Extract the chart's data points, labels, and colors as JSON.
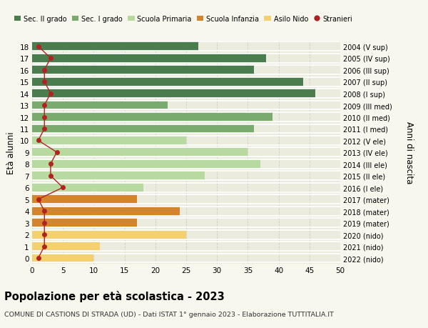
{
  "ages": [
    18,
    17,
    16,
    15,
    14,
    13,
    12,
    11,
    10,
    9,
    8,
    7,
    6,
    5,
    4,
    3,
    2,
    1,
    0
  ],
  "right_labels": [
    "2004 (V sup)",
    "2005 (IV sup)",
    "2006 (III sup)",
    "2007 (II sup)",
    "2008 (I sup)",
    "2009 (III med)",
    "2010 (II med)",
    "2011 (I med)",
    "2012 (V ele)",
    "2013 (IV ele)",
    "2014 (III ele)",
    "2015 (II ele)",
    "2016 (I ele)",
    "2017 (mater)",
    "2018 (mater)",
    "2019 (mater)",
    "2020 (nido)",
    "2021 (nido)",
    "2022 (nido)"
  ],
  "bar_values": [
    27,
    38,
    36,
    44,
    46,
    22,
    39,
    36,
    25,
    35,
    37,
    28,
    18,
    17,
    24,
    17,
    25,
    11,
    10
  ],
  "stranieri_values": [
    1,
    3,
    2,
    2,
    3,
    2,
    2,
    2,
    1,
    4,
    3,
    3,
    5,
    1,
    2,
    2,
    2,
    2,
    1
  ],
  "bar_colors": [
    "#4a7c4e",
    "#4a7c4e",
    "#4a7c4e",
    "#4a7c4e",
    "#4a7c4e",
    "#7aab6e",
    "#7aab6e",
    "#7aab6e",
    "#b8d9a0",
    "#b8d9a0",
    "#b8d9a0",
    "#b8d9a0",
    "#b8d9a0",
    "#d4842a",
    "#d4842a",
    "#d4842a",
    "#f5d070",
    "#f5d070",
    "#f5d070"
  ],
  "legend_labels": [
    "Sec. II grado",
    "Sec. I grado",
    "Scuola Primaria",
    "Scuola Infanzia",
    "Asilo Nido",
    "Stranieri"
  ],
  "legend_colors": [
    "#4a7c4e",
    "#7aab6e",
    "#b8d9a0",
    "#d4842a",
    "#f5d070",
    "#b22222"
  ],
  "title": "Popolazione per età scolastica - 2023",
  "subtitle": "COMUNE DI CASTIONS DI STRADA (UD) - Dati ISTAT 1° gennaio 2023 - Elaborazione TUTTITALIA.IT",
  "ylabel_left": "Età alunni",
  "ylabel_right": "Anni di nascita",
  "xlim": [
    0,
    50
  ],
  "xticks": [
    0,
    5,
    10,
    15,
    20,
    25,
    30,
    35,
    40,
    45,
    50
  ],
  "background_color": "#f7f7ee",
  "bar_background": "#ebebde",
  "stranieri_color": "#b22222",
  "line_color": "#b22222"
}
